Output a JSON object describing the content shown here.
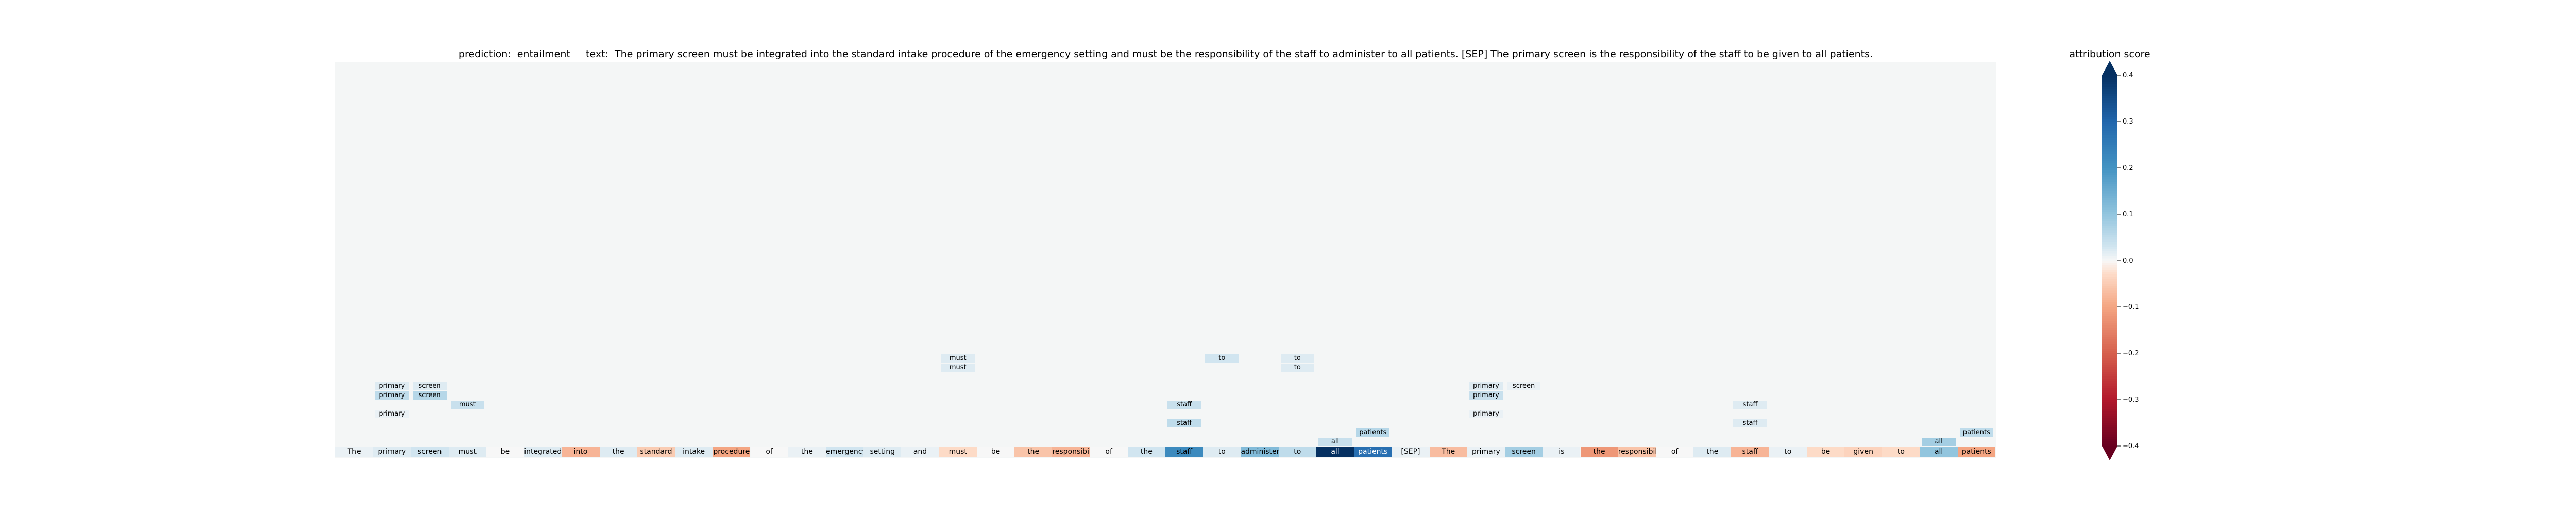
{
  "chart_data": {
    "type": "heatmap",
    "title": {
      "prediction_label": "prediction:",
      "prediction": "entailment",
      "text_label": "text:",
      "text": "The primary screen must be integrated into the standard intake procedure of the emergency setting and must be the responsibility of the staff to administer to all patients. [SEP] The primary screen is the responsibility of the staff to be given to all patients."
    },
    "tokens": [
      "The",
      "primary",
      "screen",
      "must",
      "be",
      "integrated",
      "into",
      "the",
      "standard",
      "intake",
      "procedure",
      "of",
      "the",
      "emergency",
      "setting",
      "and",
      "must",
      "be",
      "the",
      "responsibility",
      "of",
      "the",
      "staff",
      "to",
      "administer",
      "to",
      "all",
      "patients",
      "[SEP]",
      "The",
      "primary",
      "screen",
      "is",
      "the",
      "responsibility",
      "of",
      "the",
      "staff",
      "to",
      "be",
      "given",
      "to",
      "all",
      "patients"
    ],
    "token_scores": [
      0.01,
      0.02,
      0.03,
      0.02,
      0.0,
      0.02,
      -0.08,
      0.02,
      -0.05,
      0.02,
      -0.1,
      0.0,
      0.01,
      0.03,
      0.02,
      0.01,
      -0.03,
      0.0,
      -0.06,
      -0.08,
      0.0,
      0.03,
      0.22,
      0.02,
      0.12,
      0.05,
      0.42,
      0.28,
      0.01,
      -0.07,
      0.01,
      0.08,
      0.01,
      -0.12,
      -0.06,
      0.0,
      0.02,
      -0.08,
      0.01,
      -0.03,
      -0.04,
      -0.03,
      0.1,
      -0.1
    ],
    "attention_rows": [
      {
        "row": 1,
        "cells": [
          {
            "col": 26,
            "label": "all",
            "score": 0.04
          },
          {
            "col": 42,
            "label": "all",
            "score": 0.08
          }
        ]
      },
      {
        "row": 2,
        "cells": [
          {
            "col": 27,
            "label": "patients",
            "score": 0.06
          },
          {
            "col": 43,
            "label": "patients",
            "score": 0.05
          }
        ]
      },
      {
        "row": 3,
        "cells": [
          {
            "col": 22,
            "label": "staff",
            "score": 0.05
          },
          {
            "col": 37,
            "label": "staff",
            "score": 0.02
          }
        ]
      },
      {
        "row": 4,
        "cells": [
          {
            "col": 1,
            "label": "primary",
            "score": 0.01
          },
          {
            "col": 30,
            "label": "primary",
            "score": 0.01
          }
        ]
      },
      {
        "row": 5,
        "cells": [
          {
            "col": 3,
            "label": "must",
            "score": 0.04
          },
          {
            "col": 22,
            "label": "staff",
            "score": 0.04
          },
          {
            "col": 37,
            "label": "staff",
            "score": 0.02
          }
        ]
      },
      {
        "row": 6,
        "cells": [
          {
            "col": 1,
            "label": "primary",
            "score": 0.05
          },
          {
            "col": 2,
            "label": "screen",
            "score": 0.06
          },
          {
            "col": 30,
            "label": "primary",
            "score": 0.04
          }
        ]
      },
      {
        "row": 7,
        "cells": [
          {
            "col": 1,
            "label": "primary",
            "score": 0.02
          },
          {
            "col": 2,
            "label": "screen",
            "score": 0.02
          },
          {
            "col": 30,
            "label": "primary",
            "score": 0.02
          },
          {
            "col": 31,
            "label": "screen",
            "score": 0.01
          }
        ]
      },
      {
        "row": 9,
        "cells": [
          {
            "col": 16,
            "label": "must",
            "score": 0.02
          },
          {
            "col": 25,
            "label": "to",
            "score": 0.02
          }
        ]
      },
      {
        "row": 10,
        "cells": [
          {
            "col": 16,
            "label": "must",
            "score": 0.02
          },
          {
            "col": 23,
            "label": "to",
            "score": 0.03
          },
          {
            "col": 25,
            "label": "to",
            "score": 0.02
          }
        ]
      }
    ],
    "colorbar": {
      "label": "attribution score",
      "range": [
        -0.4,
        0.4
      ],
      "ticks": [
        {
          "value": 0.4,
          "label": "0.4"
        },
        {
          "value": 0.3,
          "label": "0.3"
        },
        {
          "value": 0.2,
          "label": "0.2"
        },
        {
          "value": 0.1,
          "label": "0.1"
        },
        {
          "value": 0.0,
          "label": "0.0"
        },
        {
          "value": -0.1,
          "label": "−0.1"
        },
        {
          "value": -0.2,
          "label": "−0.2"
        },
        {
          "value": -0.3,
          "label": "−0.3"
        },
        {
          "value": -0.4,
          "label": "−0.4"
        }
      ],
      "colormap": "RdBu",
      "extend": "both"
    }
  }
}
